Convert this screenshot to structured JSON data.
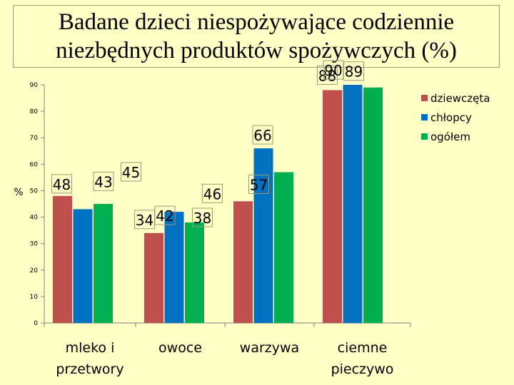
{
  "chart_data": {
    "type": "bar",
    "title_lines": [
      "Badane dzieci niespożywające codziennie",
      "niezbędnych produktów spożywczych (%)"
    ],
    "ylabel": "%",
    "ylim": [
      0,
      90
    ],
    "yticks": [
      0,
      10,
      20,
      30,
      40,
      50,
      60,
      70,
      80,
      90
    ],
    "categories": [
      [
        "mleko i",
        "przetwory"
      ],
      [
        "owoce"
      ],
      [
        "warzywa"
      ],
      [
        "ciemne",
        "pieczywo"
      ]
    ],
    "series": [
      {
        "name": "dziewczęta",
        "color": "#C0504D",
        "values": [
          48,
          34,
          46,
          88
        ]
      },
      {
        "name": "chłopcy",
        "color": "#0070C0",
        "values": [
          43,
          42,
          66,
          90
        ]
      },
      {
        "name": "ogółem",
        "color": "#00B050",
        "values": [
          45,
          38,
          57,
          89
        ]
      }
    ],
    "legend_position": "top-right",
    "grid": false
  }
}
